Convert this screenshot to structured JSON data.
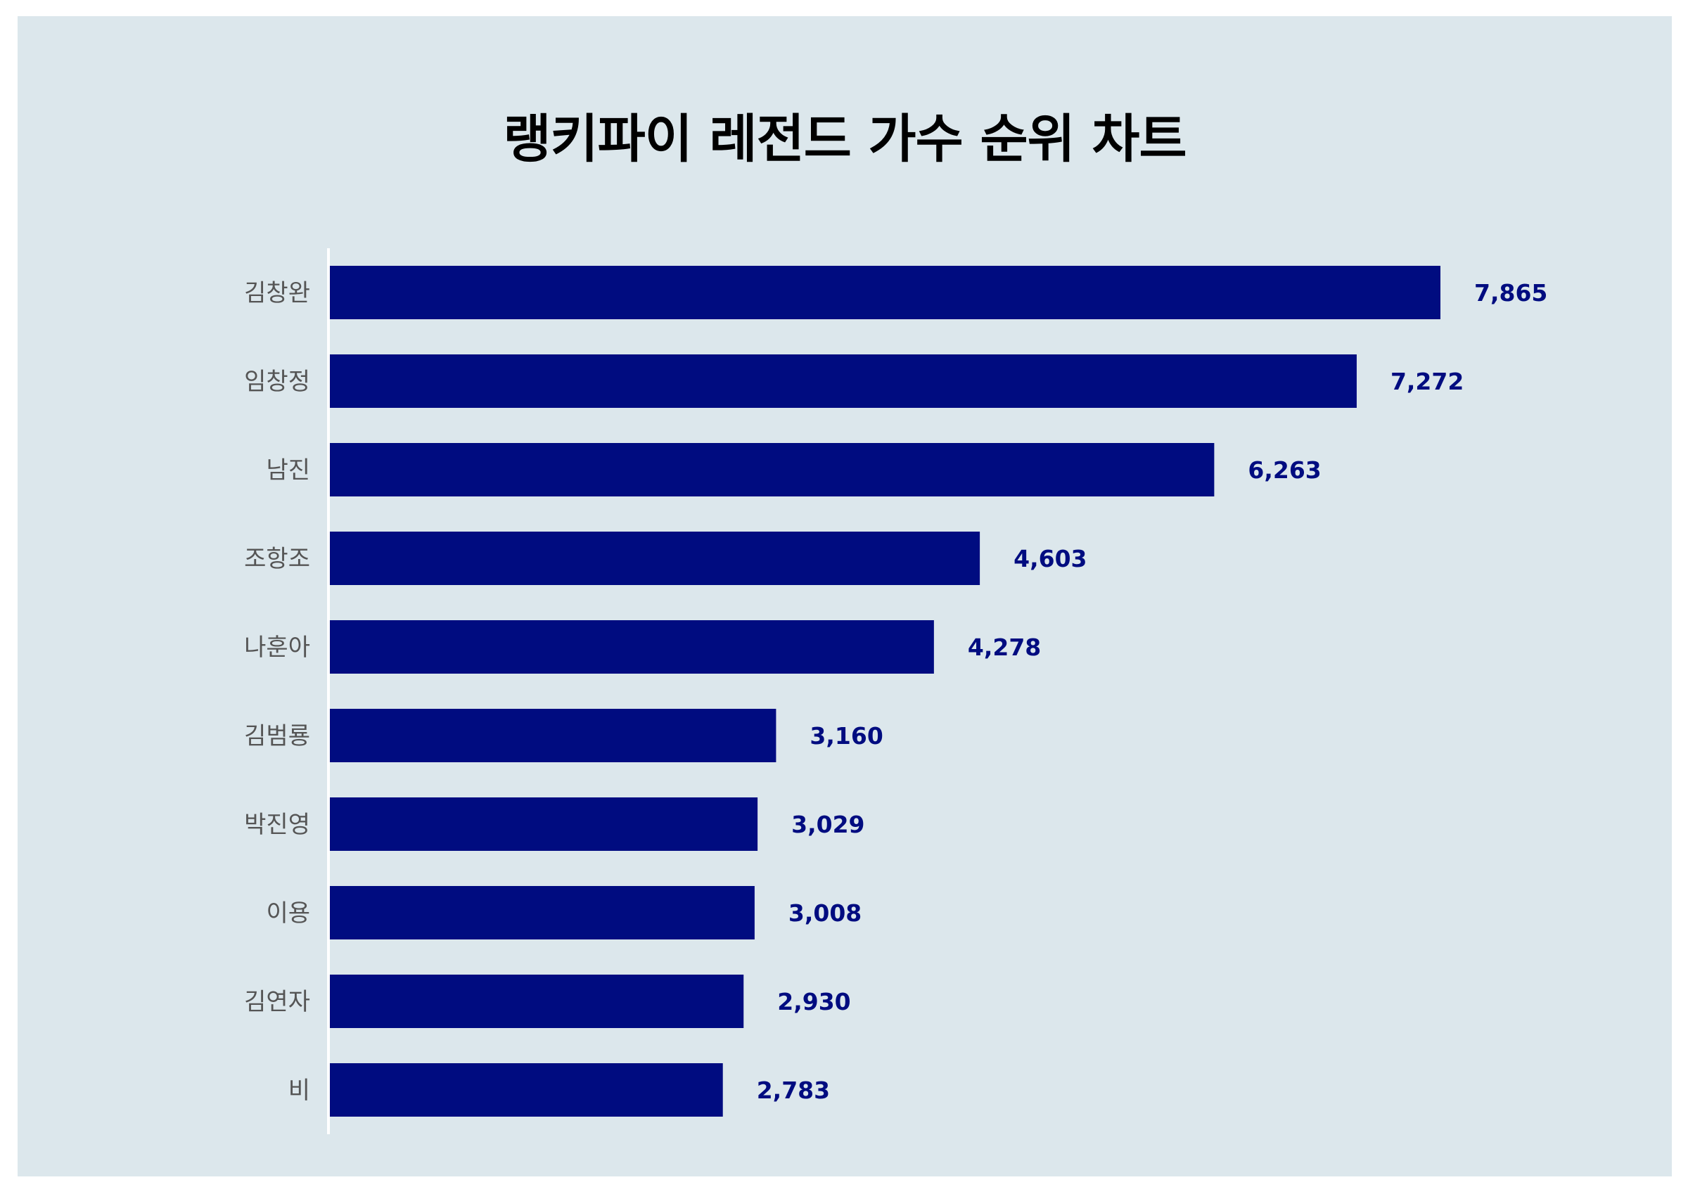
{
  "colors": {
    "bar": "#000c80",
    "value_label": "#000c80",
    "background": "#dce7ec",
    "axis_line": "#ffffff"
  },
  "chart_data": {
    "type": "bar",
    "orientation": "horizontal",
    "title": "랭키파이 레전드 가수 순위 차트",
    "xlabel": "",
    "ylabel": "",
    "categories": [
      "김창완",
      "임창정",
      "남진",
      "조항조",
      "나훈아",
      "김범룡",
      "박진영",
      "이용",
      "김연자",
      "비"
    ],
    "values": [
      7865,
      7272,
      6263,
      4603,
      4278,
      3160,
      3029,
      3008,
      2930,
      2783
    ],
    "value_labels": [
      "7,865",
      "7,272",
      "6,263",
      "4,603",
      "4,278",
      "3,160",
      "3,029",
      "3,008",
      "2,930",
      "2,783"
    ],
    "xlim": [
      0,
      8000
    ],
    "grid": false,
    "legend": "none"
  }
}
